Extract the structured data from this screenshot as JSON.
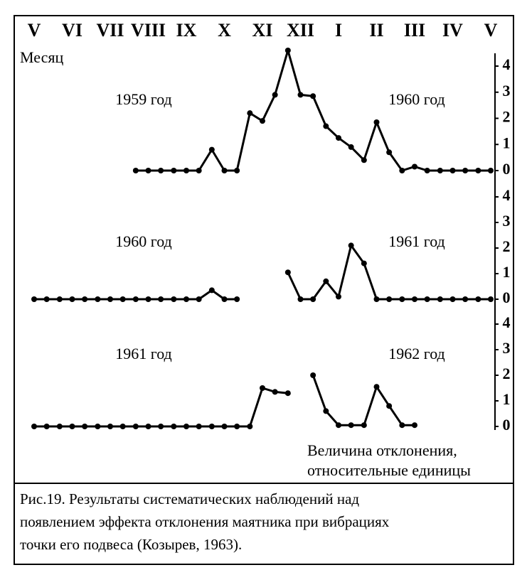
{
  "chart_data": [
    {
      "type": "line",
      "xlabel": "Месяц",
      "left_label": "1959 год",
      "right_label": "1960 год",
      "xlim": [
        0,
        12
      ],
      "xticks": [
        {
          "value": 0,
          "label": "V"
        },
        {
          "value": 1,
          "label": "VI"
        },
        {
          "value": 2,
          "label": "VII"
        },
        {
          "value": 3,
          "label": "VIII"
        },
        {
          "value": 4,
          "label": "IX"
        },
        {
          "value": 5,
          "label": "X"
        },
        {
          "value": 6,
          "label": "XI"
        },
        {
          "value": 7,
          "label": "XII"
        },
        {
          "value": 8,
          "label": "I"
        },
        {
          "value": 9,
          "label": "II"
        },
        {
          "value": 10,
          "label": "III"
        },
        {
          "value": 11,
          "label": "IV"
        },
        {
          "value": 12,
          "label": "V"
        }
      ],
      "ylim": [
        0,
        4
      ],
      "yticks": [
        0,
        1,
        2,
        3,
        4
      ],
      "x": [
        0,
        0.33,
        0.67,
        1,
        1.33,
        1.67,
        2,
        2.33,
        2.67,
        3,
        3.33,
        3.67,
        4,
        4.33,
        4.67,
        5,
        5.33,
        5.67,
        6,
        6.33,
        6.67,
        7,
        7.33,
        7.67,
        8,
        8.33,
        8.67,
        9,
        9.33,
        9.67,
        10,
        10.33,
        10.67,
        11,
        11.33,
        11.67,
        12
      ],
      "series": [
        {
          "color": "#000000",
          "values": [
            null,
            null,
            null,
            null,
            null,
            null,
            null,
            null,
            0,
            0,
            0,
            0,
            0,
            0,
            0.8,
            0,
            0,
            2.2,
            1.9,
            2.9,
            4.6,
            2.9,
            2.85,
            1.7,
            1.25,
            0.9,
            0.4,
            1.85,
            0.7,
            0,
            0.15,
            0,
            0,
            0,
            0,
            0,
            0
          ]
        }
      ]
    },
    {
      "type": "line",
      "left_label": "1960 год",
      "right_label": "1961 год",
      "xlim": [
        0,
        12
      ],
      "ylim": [
        0,
        4
      ],
      "yticks": [
        0,
        1,
        2,
        3,
        4
      ],
      "x": [
        0,
        0.33,
        0.67,
        1,
        1.33,
        1.67,
        2,
        2.33,
        2.67,
        3,
        3.33,
        3.67,
        4,
        4.33,
        4.67,
        5,
        5.33,
        5.67,
        6,
        6.33,
        6.67,
        7,
        7.33,
        7.67,
        8,
        8.33,
        8.67,
        9,
        9.33,
        9.67,
        10,
        10.33,
        10.67,
        11,
        11.33,
        11.67,
        12
      ],
      "series": [
        {
          "color": "#000000",
          "values": [
            0,
            0,
            0,
            0,
            0,
            0,
            0,
            0,
            0,
            0,
            0,
            0,
            0,
            0,
            0.35,
            0,
            0,
            null,
            null,
            null,
            1.05,
            0,
            0,
            0.7,
            0.1,
            2.1,
            1.4,
            0,
            0,
            0,
            0,
            0,
            0,
            0,
            0,
            0,
            0
          ]
        }
      ]
    },
    {
      "type": "line",
      "left_label": "1961 год",
      "right_label": "1962 год",
      "ylabel": [
        "Величина отклонения,",
        "относительные единицы"
      ],
      "xlim": [
        0,
        12
      ],
      "ylim": [
        0,
        4
      ],
      "yticks": [
        0,
        1,
        2,
        3,
        4
      ],
      "x": [
        0,
        0.33,
        0.67,
        1,
        1.33,
        1.67,
        2,
        2.33,
        2.67,
        3,
        3.33,
        3.67,
        4,
        4.33,
        4.67,
        5,
        5.33,
        5.67,
        6,
        6.33,
        6.67,
        7,
        7.33,
        7.67,
        8,
        8.33,
        8.67,
        9,
        9.33,
        9.67,
        10,
        10.33,
        10.67,
        11,
        11.33,
        11.67,
        12
      ],
      "series": [
        {
          "color": "#000000",
          "values": [
            0,
            0,
            0,
            0,
            0,
            0,
            0,
            0,
            0,
            0,
            0,
            0,
            0,
            0,
            0,
            0,
            0,
            0,
            1.5,
            1.35,
            1.3,
            null,
            2.0,
            0.6,
            0.05,
            0.05,
            0.05,
            1.55,
            0.8,
            0.05,
            0.05,
            null,
            null,
            null,
            null,
            null,
            null
          ]
        }
      ]
    }
  ],
  "caption": [
    "Рис.19. Результаты систематических наблюдений над",
    "появлением эффекта отклонения маятника при вибрациях",
    "точки его подвеса (Козырев, 1963)."
  ]
}
